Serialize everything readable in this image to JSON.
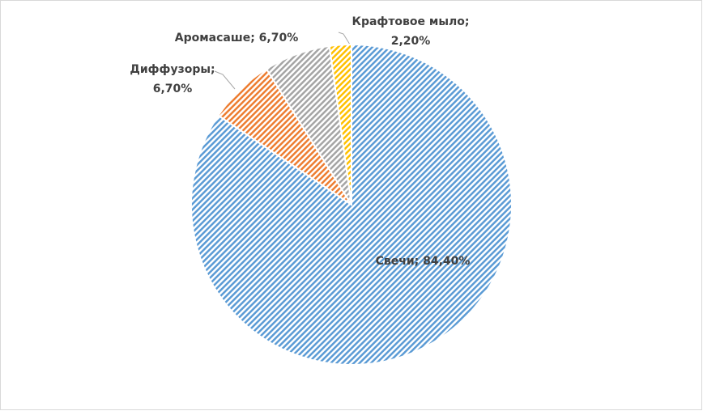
{
  "chart_data": {
    "type": "pie",
    "values": [
      84.4,
      6.7,
      6.7,
      2.2
    ],
    "value_labels": [
      "Свечи; 84,40%",
      "Диффузоры; 6,70%",
      "Аромасаше; 6,70%",
      "Крафтовое мыло; 2,20%"
    ],
    "colors": [
      "#5b9bd5",
      "#ed7d31",
      "#a5a5a5",
      "#ffc000"
    ]
  }
}
